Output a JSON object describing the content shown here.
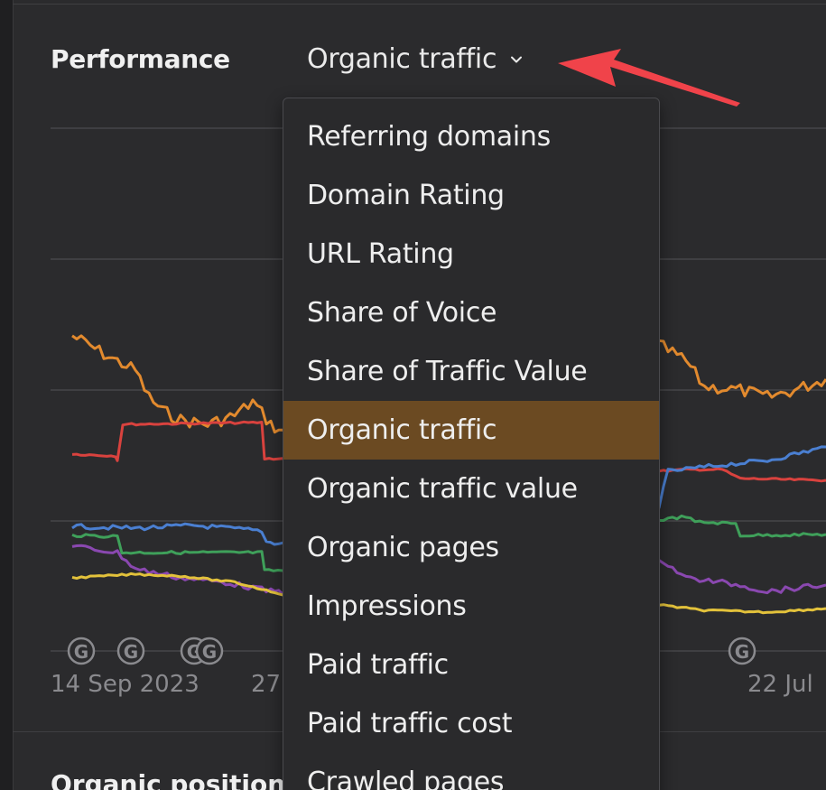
{
  "header": {
    "title": "Performance",
    "metric_selector": {
      "selected": "Organic traffic",
      "icon": "chevron-down-icon"
    }
  },
  "annotation": {
    "icon": "red-arrow-pointer-icon",
    "color": "#f0434a"
  },
  "chart": {
    "x_ticks": [
      "14 Sep 2023",
      "27",
      "22 Jul"
    ],
    "event_markers": [
      "G",
      "G",
      "G",
      "G",
      "G"
    ],
    "series_colors": {
      "orange": "#e28a2e",
      "red": "#d9423e",
      "blue": "#4a7fd1",
      "green": "#3fa05a",
      "purple": "#8a48b0",
      "yellow": "#e3c23b"
    },
    "gridline_color": "#3f3f42"
  },
  "dropdown": {
    "items": [
      "Referring domains",
      "Domain Rating",
      "URL Rating",
      "Share of Voice",
      "Share of Traffic Value",
      "Organic traffic",
      "Organic traffic value",
      "Organic pages",
      "Impressions",
      "Paid traffic",
      "Paid traffic cost",
      "Crawled pages"
    ],
    "selected_index": 5,
    "highlight_color": "#6b4a22"
  },
  "next_section": {
    "title": "Organic positions"
  }
}
